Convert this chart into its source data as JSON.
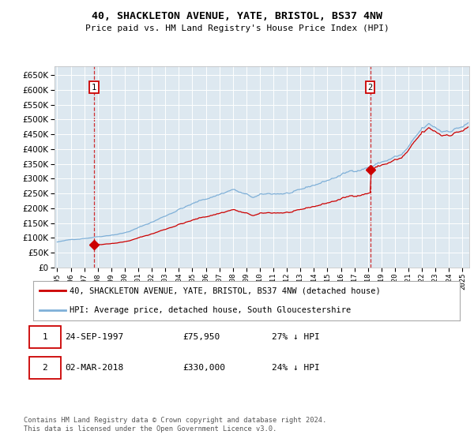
{
  "title": "40, SHACKLETON AVENUE, YATE, BRISTOL, BS37 4NW",
  "subtitle": "Price paid vs. HM Land Registry's House Price Index (HPI)",
  "background_color": "#ffffff",
  "plot_bg": "#dde8f0",
  "hpi_color": "#7fb0d8",
  "price_color": "#cc0000",
  "marker_color": "#cc0000",
  "legend_label_red": "40, SHACKLETON AVENUE, YATE, BRISTOL, BS37 4NW (detached house)",
  "legend_label_blue": "HPI: Average price, detached house, South Gloucestershire",
  "sale1_date": "24-SEP-1997",
  "sale1_price": "£75,950",
  "sale1_hpi": "27% ↓ HPI",
  "sale2_date": "02-MAR-2018",
  "sale2_price": "£330,000",
  "sale2_hpi": "24% ↓ HPI",
  "footer": "Contains HM Land Registry data © Crown copyright and database right 2024.\nThis data is licensed under the Open Government Licence v3.0.",
  "ylim": [
    0,
    680000
  ],
  "yticks": [
    0,
    50000,
    100000,
    150000,
    200000,
    250000,
    300000,
    350000,
    400000,
    450000,
    500000,
    550000,
    600000,
    650000
  ],
  "sale1_year": 1997.73,
  "sale1_value": 75950,
  "sale2_year": 2018.17,
  "sale2_value": 330000,
  "xlim_left": 1994.8,
  "xlim_right": 2025.5
}
